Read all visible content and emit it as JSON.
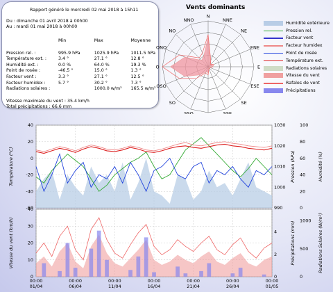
{
  "report": {
    "generated": "Rapport généré le mercredi 02 mai 2018 à 15h11",
    "period_from": "Du : dimanche 01 avril 2018 à 00h00",
    "period_to": "Au : mardi 01 mai 2018 à 00h00",
    "columns": [
      "",
      "Min",
      "Max",
      "Moyenne"
    ],
    "rows": [
      {
        "label": "Pression rel. :",
        "min": "995.9 hPa",
        "max": "1025.9 hPa",
        "avg": "1011.5 hPa"
      },
      {
        "label": "Température ext. :",
        "min": "3.4 °",
        "max": "27.1 °",
        "avg": "12.8 °"
      },
      {
        "label": "Humidité ext. :",
        "min": "0.0 %",
        "max": "64.0 %",
        "avg": "19.3 %"
      },
      {
        "label": "Point de rosée :",
        "min": "-46.5 °",
        "max": "15.0 °",
        "avg": "1.3 °"
      },
      {
        "label": "Facteur vent :",
        "min": "3.3 °",
        "max": "27.1 °",
        "avg": "12.5 °"
      },
      {
        "label": "Facteur humidex :",
        "min": "5.7 °",
        "max": "30.2 °",
        "avg": "7.3 °"
      },
      {
        "label": "Radiations solaires :",
        "min": "",
        "max": "1000.0 w/m²",
        "avg": "165.5 w/m²"
      }
    ],
    "max_wind": "Vitesse maximale du vent : 35.4 km/h",
    "total_precip": "Total précipitations : 66.6 mm"
  },
  "colors": {
    "humidity": "#b8cde6",
    "pressure": "#33aa33",
    "wind_factor": "#3333cc",
    "humidex": "#ee8888",
    "dew_point": "#2244dd",
    "temperature": "#dd2222",
    "solar": "#c4d4b8",
    "wind_speed": "#f0a0a0",
    "gusts": "#ee6666",
    "precip": "#8888ee"
  },
  "legend": [
    {
      "label": "Humidité extérieure",
      "key": "humidity",
      "style": "area"
    },
    {
      "label": "Pression rel.",
      "key": "pressure",
      "style": "line"
    },
    {
      "label": "Facteur vent",
      "key": "wind_factor",
      "style": "line"
    },
    {
      "label": "Facteur humidex",
      "key": "humidex",
      "style": "line"
    },
    {
      "label": "Point de rosée",
      "key": "dew_point",
      "style": "line"
    },
    {
      "label": "Température ext.",
      "key": "temperature",
      "style": "line"
    },
    {
      "label": "Radiations solaires",
      "key": "solar",
      "style": "shade"
    },
    {
      "label": "Vitesse du vent",
      "key": "wind_speed",
      "style": "area"
    },
    {
      "label": "Rafales de vent",
      "key": "gusts",
      "style": "line"
    },
    {
      "label": "Précipitations",
      "key": "precip",
      "style": "area"
    }
  ],
  "chart_data": [
    {
      "type": "radar",
      "title": "Vents dominants",
      "directions": [
        "N",
        "NNE",
        "NE",
        "ENE",
        "E",
        "ESE",
        "SE",
        "SSE",
        "S",
        "SSO",
        "SO",
        "OSO",
        "O",
        "ONO",
        "NO",
        "NNO"
      ],
      "rings": 4,
      "series": [
        {
          "name": "Vitesse du vent",
          "values": [
            2.6,
            0.5,
            0.3,
            0.5,
            0.2,
            0.1,
            0.1,
            0.2,
            0.5,
            0.5,
            1.0,
            2.2,
            3.3,
            2.2,
            0.8,
            1.0
          ]
        },
        {
          "name": "Rafales de vent",
          "values": [
            2.8,
            0.6,
            0.3,
            0.5,
            0.4,
            0.2,
            0.2,
            0.2,
            0.7,
            0.6,
            1.4,
            2.7,
            4.0,
            2.7,
            1.1,
            1.3
          ]
        }
      ]
    },
    {
      "type": "line",
      "x_tick_labels": [
        "00:00\n01/04",
        "00:00\n06/04",
        "00:00\n11/04",
        "00:00\n16/04",
        "00:00\n21/04",
        "00:00\n26/04",
        "00:00\n01/05"
      ],
      "top": {
        "ylabel_left": "Température (°C)",
        "ylim_left": [
          -60,
          40
        ],
        "yticks_left": [
          -60,
          -40,
          -20,
          0,
          20,
          40
        ],
        "ylabel_right1": "Pression (hPa)",
        "ylim_right1": [
          990,
          1030
        ],
        "yticks_right1": [
          990,
          1000,
          1010,
          1020,
          1030
        ],
        "ylabel_right2": "Humidité (%)",
        "ylim_right2": [
          0,
          100
        ],
        "yticks_right2": [
          0,
          20,
          40,
          60,
          80,
          100
        ],
        "series": {
          "temperature": [
            8,
            6,
            9,
            12,
            10,
            7,
            11,
            14,
            12,
            9,
            8,
            10,
            13,
            11,
            8,
            7,
            9,
            12,
            14,
            15,
            13,
            12,
            14,
            16,
            17,
            15,
            14,
            12,
            11,
            10,
            12
          ],
          "humidex": [
            10,
            8,
            11,
            14,
            12,
            9,
            13,
            16,
            14,
            11,
            10,
            12,
            15,
            13,
            10,
            9,
            11,
            14,
            17,
            19,
            16,
            15,
            17,
            19,
            20,
            18,
            17,
            15,
            14,
            13,
            15
          ],
          "dew_point": [
            -10,
            -40,
            -20,
            5,
            -30,
            -15,
            -5,
            -35,
            -20,
            -25,
            -10,
            -30,
            -5,
            -20,
            -40,
            -15,
            -10,
            0,
            -20,
            -25,
            -10,
            -5,
            -30,
            -15,
            -20,
            -10,
            -25,
            -35,
            -15,
            -20,
            -10
          ],
          "pressure": [
            1005,
            1002,
            1008,
            1012,
            1016,
            1013,
            1010,
            1004,
            998,
            1001,
            1006,
            1009,
            1012,
            1014,
            1017,
            1010,
            1004,
            1006,
            1012,
            1018,
            1021,
            1024,
            1020,
            1016,
            1012,
            1008,
            1005,
            1009,
            1014,
            1010,
            1006
          ],
          "humidity": [
            20,
            35,
            45,
            10,
            40,
            25,
            15,
            50,
            30,
            40,
            20,
            55,
            10,
            30,
            60,
            20,
            15,
            5,
            40,
            35,
            10,
            20,
            45,
            25,
            30,
            15,
            35,
            55,
            25,
            20,
            15
          ]
        }
      },
      "bottom": {
        "ylabel_left": "Vitesse du vent (km/h)",
        "ylim_left": [
          0,
          40
        ],
        "yticks_left": [
          0,
          10,
          20,
          30,
          40
        ],
        "ylabel_right1": "Précipitations (mm)",
        "ylim_right1": [
          0,
          6
        ],
        "yticks_right1": [
          0,
          2,
          4
        ],
        "ylabel_right2": "Radiations Solaires (W/m²)",
        "ylim_right2": [
          0,
          1200
        ],
        "yticks_right2": [
          0,
          500,
          1000
        ],
        "series": {
          "wind_speed": [
            8,
            12,
            6,
            15,
            20,
            9,
            5,
            18,
            25,
            14,
            8,
            6,
            11,
            16,
            22,
            10,
            7,
            9,
            13,
            10,
            8,
            12,
            15,
            9,
            7,
            11,
            14,
            8,
            6,
            10,
            12
          ],
          "gusts": [
            14,
            20,
            12,
            24,
            30,
            16,
            10,
            28,
            35,
            22,
            14,
            11,
            19,
            26,
            31,
            18,
            13,
            16,
            22,
            18,
            15,
            20,
            24,
            16,
            13,
            19,
            23,
            15,
            11,
            17,
            20
          ],
          "precip": [
            0,
            1.2,
            0,
            0.5,
            3.0,
            0.8,
            0,
            2.5,
            4.1,
            1.5,
            0,
            0,
            0.6,
            1.8,
            3.5,
            0.4,
            0,
            0,
            0.9,
            0.3,
            0,
            0.5,
            1.2,
            0,
            0,
            0.3,
            0.8,
            0,
            0,
            0.2,
            0
          ]
        }
      }
    }
  ]
}
